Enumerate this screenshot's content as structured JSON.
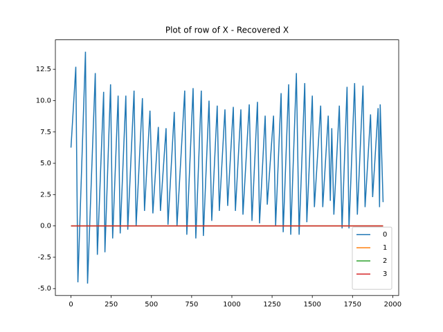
{
  "chart_data": {
    "type": "line",
    "title": "Plot of row of X - Recovered X",
    "xlim": [
      -97,
      2037
    ],
    "ylim": [
      -5.55,
      14.85
    ],
    "xticks": [
      0,
      250,
      500,
      750,
      1000,
      1250,
      1500,
      1750,
      2000
    ],
    "yticks": [
      {
        "value": -5,
        "label": "-5.0"
      },
      -2.5,
      {
        "value": 0,
        "label": "0.0"
      },
      2.5,
      {
        "value": 5,
        "label": "5.0"
      },
      7.5,
      {
        "value": 10,
        "label": "10.0"
      },
      12.5
    ],
    "grid": false,
    "legend": "lower right",
    "series": [
      {
        "name": "0",
        "color": "#1f77b4",
        "x": [
          0,
          30,
          43,
          90,
          103,
          151,
          164,
          203,
          211,
          246,
          259,
          293,
          306,
          341,
          353,
          392,
          405,
          444,
          457,
          491,
          509,
          543,
          556,
          591,
          603,
          642,
          659,
          707,
          720,
          759,
          776,
          810,
          823,
          858,
          875,
          909,
          922,
          957,
          974,
          1009,
          1022,
          1056,
          1069,
          1108,
          1125,
          1159,
          1172,
          1207,
          1220,
          1259,
          1272,
          1306,
          1319,
          1353,
          1366,
          1401,
          1418,
          1453,
          1466,
          1500,
          1513,
          1552,
          1565,
          1599,
          1612,
          1621,
          1634,
          1668,
          1685,
          1716,
          1728,
          1763,
          1780,
          1815,
          1828,
          1862,
          1875,
          1909,
          1918,
          1922,
          1940
        ],
        "values": [
          6.25,
          12.7,
          -4.5,
          13.9,
          -4.6,
          12.2,
          -2.3,
          10.7,
          -2.1,
          11.3,
          -1.0,
          10.4,
          -0.6,
          10.4,
          -0.3,
          10.8,
          0.0,
          10.2,
          1.2,
          9.2,
          1.0,
          7.9,
          1.2,
          7.8,
          0.1,
          9.1,
          0.0,
          10.8,
          -0.7,
          11.0,
          -1.0,
          10.8,
          -0.8,
          10.0,
          0.4,
          9.6,
          1.2,
          9.3,
          1.6,
          9.5,
          1.2,
          9.3,
          0.9,
          9.7,
          0.4,
          9.9,
          0.2,
          8.8,
          1.7,
          8.8,
          0.0,
          10.6,
          -0.5,
          11.3,
          -0.7,
          12.2,
          -0.7,
          11.4,
          0.3,
          10.4,
          1.5,
          9.6,
          1.5,
          8.8,
          2.0,
          7.8,
          0.9,
          9.6,
          -0.2,
          11.1,
          -0.2,
          11.4,
          0.9,
          11.2,
          1.5,
          8.9,
          2.3,
          9.4,
          1.5,
          9.7,
          1.9
        ]
      },
      {
        "name": "1",
        "color": "#ff7f0e",
        "x": [
          0,
          1940
        ],
        "values": [
          0,
          0
        ]
      },
      {
        "name": "2",
        "color": "#2ca02c",
        "x": [
          0,
          1940
        ],
        "values": [
          0,
          0
        ]
      },
      {
        "name": "3",
        "color": "#d62728",
        "x": [
          0,
          1940
        ],
        "values": [
          0,
          0
        ]
      }
    ]
  }
}
